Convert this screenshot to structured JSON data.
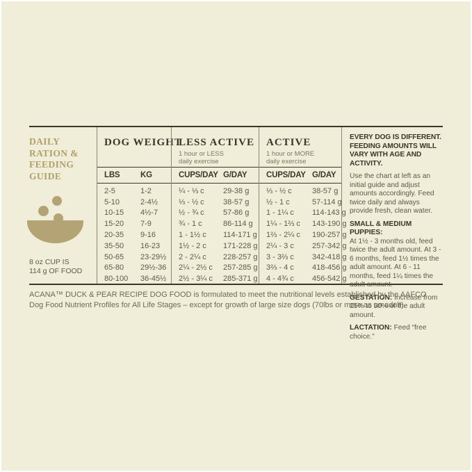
{
  "colors": {
    "background": "#f0edd8",
    "accent_gold": "#b1a06c",
    "rule_dark": "#393729",
    "divider_gray": "#8b8775",
    "text_body": "#5d5a4b"
  },
  "left_panel": {
    "title": "DAILY RATION & FEEDING GUIDE",
    "icon": "food-bowl-icon",
    "cup_note_line1": "8 oz CUP IS",
    "cup_note_line2": "114 g OF FOOD"
  },
  "table": {
    "weight_header": "DOG WEIGHT",
    "less_active": {
      "title": "LESS ACTIVE",
      "subtitle_line1": "1 hour or LESS",
      "subtitle_line2": "daily exercise"
    },
    "active": {
      "title": "ACTIVE",
      "subtitle_line1": "1 hour or MORE",
      "subtitle_line2": "daily exercise"
    },
    "columns": {
      "lbs": "LBS",
      "kg": "KG",
      "cups": "CUPS/DAY",
      "grams": "G/DAY"
    },
    "rows": [
      {
        "lbs": "2-5",
        "kg": "1-2",
        "less_cups": "¼ - ⅓ c",
        "less_g": "29-38 g",
        "active_cups": "⅓ - ½ c",
        "active_g": "38-57 g"
      },
      {
        "lbs": "5-10",
        "kg": "2-4½",
        "less_cups": "⅓ - ½ c",
        "less_g": "38-57 g",
        "active_cups": "½ - 1 c",
        "active_g": "57-114 g"
      },
      {
        "lbs": "10-15",
        "kg": "4½-7",
        "less_cups": "½ - ¾ c",
        "less_g": "57-86 g",
        "active_cups": "1 - 1¼ c",
        "active_g": "114-143 g"
      },
      {
        "lbs": "15-20",
        "kg": "7-9",
        "less_cups": "¾ - 1 c",
        "less_g": "86-114 g",
        "active_cups": "1¼ - 1⅔ c",
        "active_g": "143-190 g"
      },
      {
        "lbs": "20-35",
        "kg": "9-16",
        "less_cups": "1 - 1½ c",
        "less_g": "114-171 g",
        "active_cups": "1⅔ - 2¼ c",
        "active_g": "190-257 g"
      },
      {
        "lbs": "35-50",
        "kg": "16-23",
        "less_cups": "1½ - 2 c",
        "less_g": "171-228 g",
        "active_cups": "2¼ - 3 c",
        "active_g": "257-342 g"
      },
      {
        "lbs": "50-65",
        "kg": "23-29½",
        "less_cups": "2 - 2¼ c",
        "less_g": "228-257 g",
        "active_cups": "3 - 3⅔ c",
        "active_g": "342-418 g"
      },
      {
        "lbs": "65-80",
        "kg": "29½-36",
        "less_cups": "2¼ - 2½ c",
        "less_g": "257-285 g",
        "active_cups": "3⅔ - 4 c",
        "active_g": "418-456 g"
      },
      {
        "lbs": "80-100",
        "kg": "36-45½",
        "less_cups": "2½ - 3¼ c",
        "less_g": "285-371 g",
        "active_cups": "4 - 4¾ c",
        "active_g": "456-542 g"
      }
    ]
  },
  "info_panel": {
    "heading": "EVERY DOG IS DIFFERENT. FEEDING AMOUNTS WILL VARY WITH AGE AND ACTIVITY.",
    "intro": "Use the chart at left as an initial guide and adjust amounts accordingly. Feed twice daily and always provide fresh, clean water.",
    "puppies_label": "SMALL & MEDIUM PUPPIES:",
    "puppies_text": "At 1½ - 3 months old, feed twice the adult amount. At 3 - 6 months, feed 1½ times the adult amount. At 6 - 11 months, feed 1¼ times the adult amount.",
    "gestation_label": "GESTATION:",
    "gestation_text": " Increase from 25% to 50% of the adult amount.",
    "lactation_label": "LACTATION:",
    "lactation_text": " Feed “free choice.”"
  },
  "footnote": "ACANA™ DUCK & PEAR RECIPE DOG FOOD is formulated to meet the nutritional levels established by the AAFCO Dog Food Nutrient Profiles for All Life Stages – except for growth of large size dogs (70lbs or more as an adult)."
}
